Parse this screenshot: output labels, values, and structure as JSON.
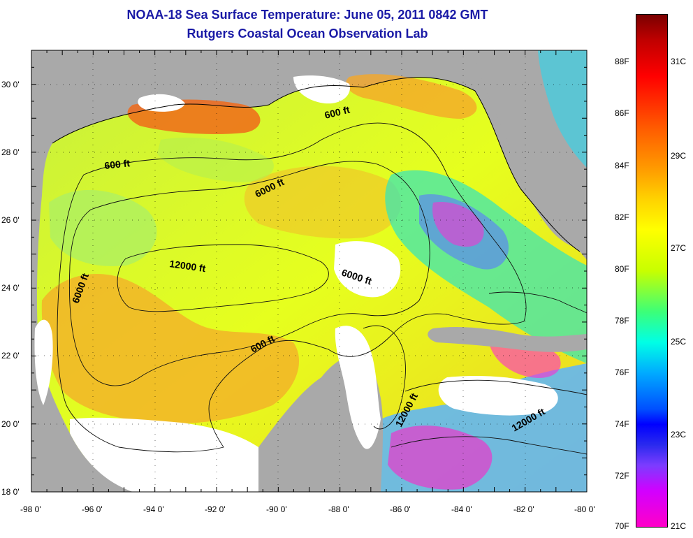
{
  "header": {
    "title_line1": "NOAA-18 Sea Surface Temperature:  June 05, 2011 0842 GMT",
    "title_line2": "Rutgers Coastal Ocean Observation Lab"
  },
  "map": {
    "region": "Gulf of Mexico",
    "lon_range": [
      -98,
      -80
    ],
    "lat_range": [
      18,
      31
    ],
    "land_color": "#a9a9a9",
    "cloud_color": "#ffffff",
    "x_ticks": [
      "-98 0'",
      "-96 0'",
      "-94 0'",
      "-92 0'",
      "-90 0'",
      "-88 0'",
      "-86 0'",
      "-84 0'",
      "-82 0'",
      "-80 0'"
    ],
    "y_ticks": [
      "30 0'",
      "28 0'",
      "26 0'",
      "24 0'",
      "22 0'",
      "20 0'",
      "18 0'"
    ],
    "contour_labels": [
      {
        "text": "600 ft"
      },
      {
        "text": "6000 ft"
      },
      {
        "text": "600 ft"
      },
      {
        "text": "12000 ft"
      },
      {
        "text": "6000 ft"
      },
      {
        "text": "6000 ft"
      },
      {
        "text": "600 ft"
      },
      {
        "text": "12000 ft"
      },
      {
        "text": "12000 ft"
      }
    ]
  },
  "colorbar": {
    "fahrenheit_ticks": [
      "88F",
      "86F",
      "84F",
      "82F",
      "80F",
      "78F",
      "76F",
      "74F",
      "72F",
      "70F"
    ],
    "celsius_ticks": [
      "31C",
      "29C",
      "27C",
      "25C",
      "23C",
      "21C"
    ]
  }
}
